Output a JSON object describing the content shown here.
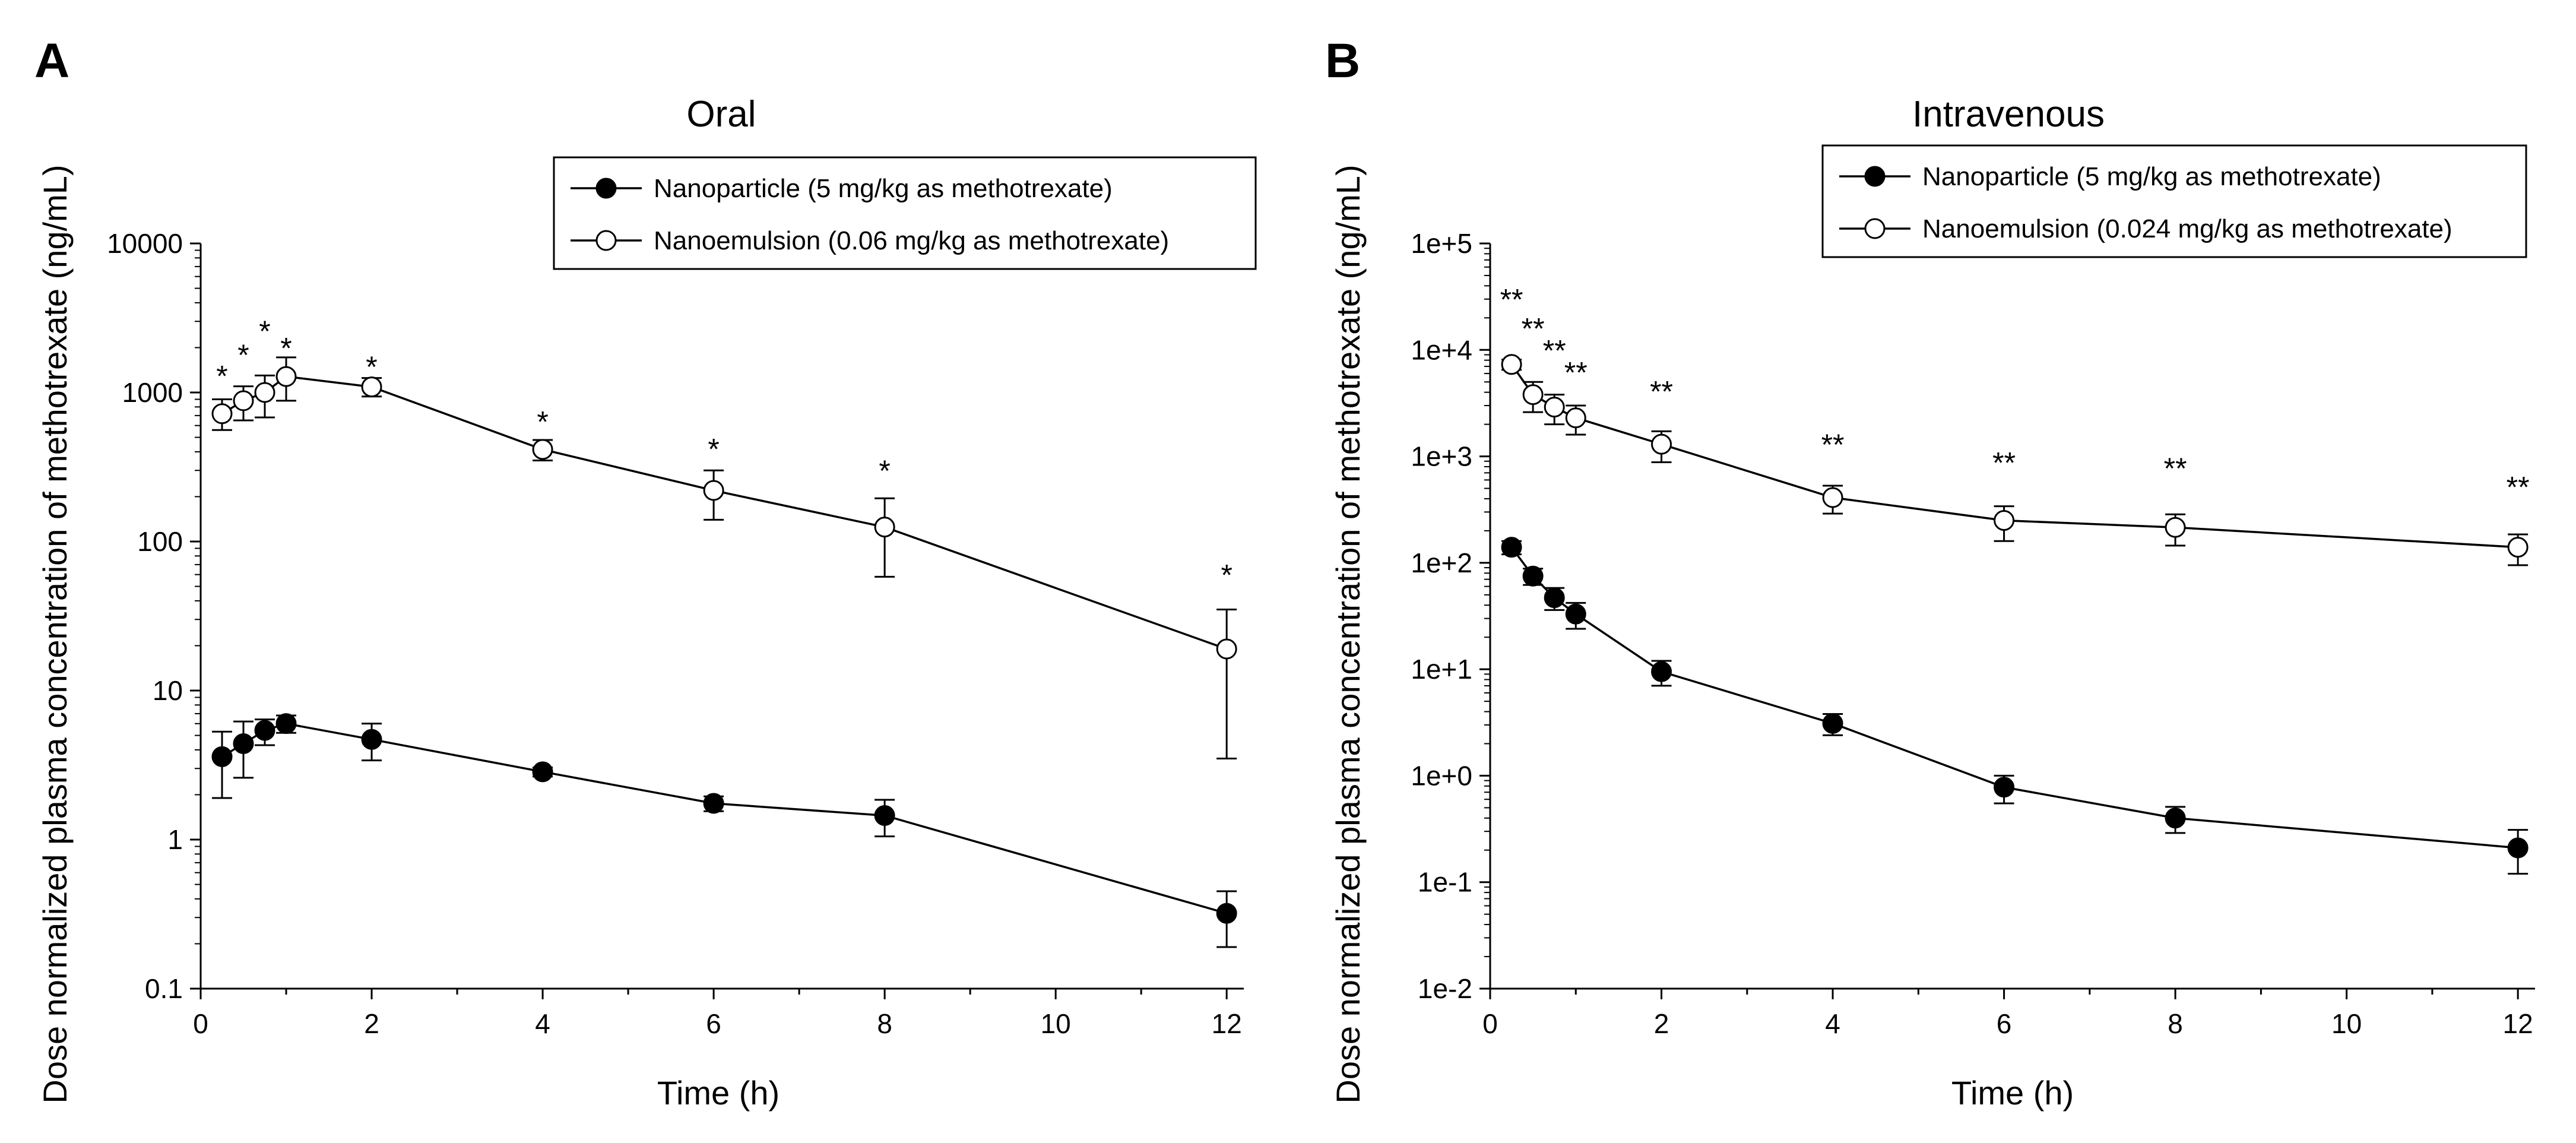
{
  "chart_data": [
    {
      "panel": "A",
      "type": "line",
      "title": "Oral",
      "xlabel": "Time (h)",
      "ylabel": "Dose normalized plasma concentration of methotrexate (ng/mL)",
      "yscale": "log",
      "xlim": [
        0,
        12.2
      ],
      "ylim": [
        0.1,
        10000
      ],
      "xticks": [
        0,
        2,
        4,
        6,
        8,
        10,
        12
      ],
      "xtick_labels": [
        "0",
        "2",
        "4",
        "6",
        "8",
        "10",
        "12"
      ],
      "yticks": [
        0.1,
        1,
        10,
        100,
        1000,
        10000
      ],
      "ytick_labels": [
        "0.1",
        "1",
        "10",
        "100",
        "1000",
        "10000"
      ],
      "legend_position": "top-right",
      "series": [
        {
          "name": "Nanoparticle (5 mg/kg as methotrexate)",
          "marker": "filled-circle",
          "x": [
            0.25,
            0.5,
            0.75,
            1,
            2,
            4,
            6,
            8,
            12
          ],
          "y": [
            3.6,
            4.4,
            5.4,
            6.0,
            4.7,
            2.85,
            1.75,
            1.45,
            0.32
          ],
          "err_low": [
            1.9,
            2.6,
            4.3,
            5.2,
            3.4,
            2.65,
            1.55,
            1.05,
            0.19
          ],
          "err_high": [
            5.3,
            6.2,
            6.4,
            6.8,
            6.0,
            3.05,
            1.95,
            1.85,
            0.45
          ]
        },
        {
          "name": "Nanoemulsion (0.06 mg/kg as methotrexate)",
          "marker": "open-circle",
          "x": [
            0.25,
            0.5,
            0.75,
            1,
            2,
            4,
            6,
            8,
            12
          ],
          "y": [
            720,
            880,
            1000,
            1280,
            1090,
            415,
            220,
            125,
            19
          ],
          "err_low": [
            560,
            650,
            680,
            880,
            940,
            350,
            140,
            58,
            3.5
          ],
          "err_high": [
            900,
            1100,
            1300,
            1720,
            1250,
            480,
            300,
            195,
            35
          ]
        }
      ],
      "annotations": [
        {
          "x": 0.25,
          "y": 1300,
          "text": "*"
        },
        {
          "x": 0.5,
          "y": 1800,
          "text": "*"
        },
        {
          "x": 0.75,
          "y": 2600,
          "text": "*"
        },
        {
          "x": 1,
          "y": 2000,
          "text": "*"
        },
        {
          "x": 2,
          "y": 1500,
          "text": "*"
        },
        {
          "x": 4,
          "y": 640,
          "text": "*"
        },
        {
          "x": 6,
          "y": 420,
          "text": "*"
        },
        {
          "x": 8,
          "y": 300,
          "text": "*"
        },
        {
          "x": 12,
          "y": 60,
          "text": "*"
        }
      ]
    },
    {
      "panel": "B",
      "type": "line",
      "title": "Intravenous",
      "xlabel": "Time (h)",
      "ylabel": "Dose normalized plasma concentration of methotrexate (ng/mL)",
      "yscale": "log",
      "xlim": [
        0,
        12.2
      ],
      "ylim": [
        0.01,
        100000
      ],
      "xticks": [
        0,
        2,
        4,
        6,
        8,
        10,
        12
      ],
      "xtick_labels": [
        "0",
        "2",
        "4",
        "6",
        "8",
        "10",
        "12"
      ],
      "yticks": [
        0.01,
        0.1,
        1,
        10,
        100,
        1000,
        10000,
        100000
      ],
      "ytick_labels": [
        "1e-2",
        "1e-1",
        "1e+0",
        "1e+1",
        "1e+2",
        "1e+3",
        "1e+4",
        "1e+5"
      ],
      "legend_position": "top-right",
      "series": [
        {
          "name": "Nanoparticle (5 mg/kg as methotrexate)",
          "marker": "filled-circle",
          "x": [
            0.25,
            0.5,
            0.75,
            1,
            2,
            4,
            6,
            8,
            12
          ],
          "y": [
            140,
            75,
            47,
            33,
            9.5,
            3.1,
            0.78,
            0.4,
            0.21
          ],
          "err_low": [
            120,
            62,
            36,
            24,
            7.0,
            2.4,
            0.55,
            0.29,
            0.12
          ],
          "err_high": [
            160,
            88,
            58,
            42,
            12,
            3.8,
            1.0,
            0.51,
            0.31
          ]
        },
        {
          "name": "Nanoemulsion (0.024 mg/kg as methotrexate)",
          "marker": "open-circle",
          "x": [
            0.25,
            0.5,
            0.75,
            1,
            2,
            4,
            6,
            8,
            12
          ],
          "y": [
            7300,
            3800,
            2900,
            2300,
            1300,
            410,
            250,
            215,
            140
          ],
          "err_low": [
            6500,
            2600,
            2000,
            1600,
            880,
            290,
            160,
            145,
            95
          ],
          "err_high": [
            8100,
            5000,
            3800,
            3000,
            1720,
            530,
            340,
            285,
            185
          ]
        }
      ],
      "annotations": [
        {
          "x": 0.25,
          "y": 30000,
          "text": "**"
        },
        {
          "x": 0.5,
          "y": 16000,
          "text": "**"
        },
        {
          "x": 0.75,
          "y": 10000,
          "text": "**"
        },
        {
          "x": 1,
          "y": 6200,
          "text": "**"
        },
        {
          "x": 2,
          "y": 4100,
          "text": "**"
        },
        {
          "x": 4,
          "y": 1300,
          "text": "**"
        },
        {
          "x": 6,
          "y": 880,
          "text": "**"
        },
        {
          "x": 8,
          "y": 780,
          "text": "**"
        },
        {
          "x": 12,
          "y": 520,
          "text": "**"
        }
      ]
    }
  ]
}
